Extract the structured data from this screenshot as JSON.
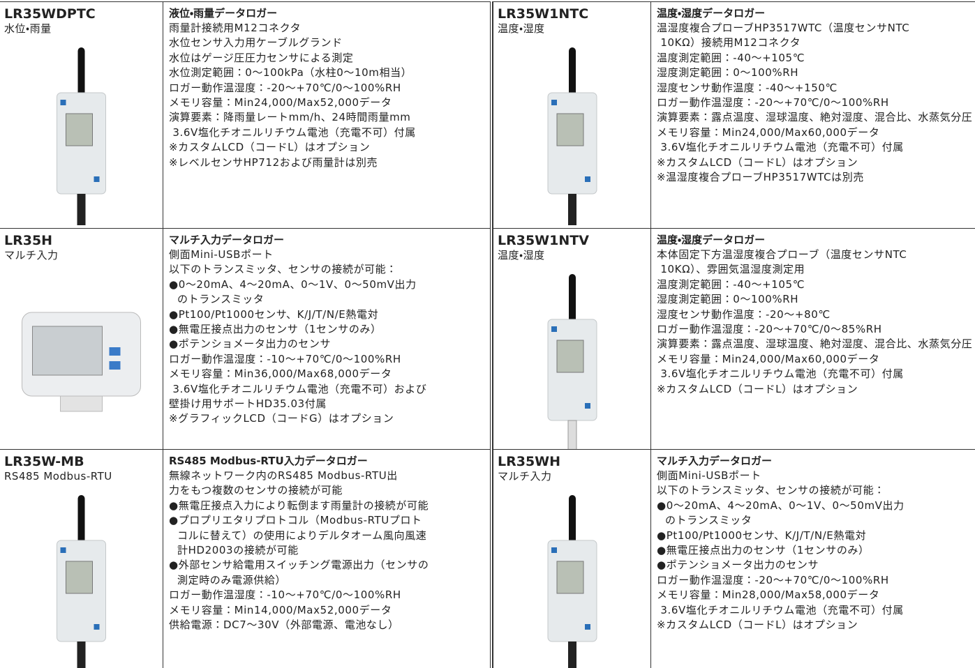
{
  "tables": [
    {
      "rows": [
        {
          "model": "LR35WDPTC",
          "category": "水位・雨量",
          "title": "液位・雨量データロガー",
          "lines": [
            "雨量計接続用M12コネクタ",
            "水位センサ入力用ケーブルグランド",
            "水位はゲージ圧圧力センサによる測定",
            "水位測定範囲：0～100kPa（水柱0～10m相当）",
            "ロガー動作温湿度：-20～+70℃/0～100%RH",
            "メモリ容量：Min24,000/Max52,000データ",
            "演算要素：降雨量レートmm/h、24時間雨量mm",
            " 3.6V塩化チオニルリチウム電池（充電不可）付属",
            "※カスタムLCD（コードL）はオプション",
            "※レベルセンサHP712および雨量計は別売"
          ]
        },
        {
          "model": "LR35H",
          "category": "マルチ入力",
          "title": "マルチ入力データロガー",
          "lines": [
            "側面Mini-USBポート",
            "以下のトランスミッタ、センサの接続が可能：",
            [
              "●0～20mA、4～20mA、0～1V、0～50mV出力",
              "のトランスミッタ"
            ],
            "●Pt100/Pt1000センサ、K/J/T/N/E熱電対",
            "●無電圧接点出力のセンサ（1センサのみ）",
            "●ポテンショメータ出力のセンサ",
            "ロガー動作温湿度：-10～+70℃/0～100%RH",
            "メモリ容量：Min36,000/Max68,000データ",
            " 3.6V塩化チオニルリチウム電池（充電不可）および",
            "壁掛け用サポートHD35.03付属",
            "※グラフィックLCD（コードG）はオプション"
          ]
        },
        {
          "model": "LR35W-MB",
          "category": "RS485 Modbus-RTU",
          "title": "RS485 Modbus-RTU入力データロガー",
          "lines": [
            "無線ネットワーク内のRS485 Modbus-RTU出",
            "力をもつ複数のセンサの接続が可能",
            "●無電圧接点入力により転倒ます雨量計の接続が可能",
            [
              "●プロプリエタリプロトコル（Modbus-RTUプロト",
              "コルに替えて）の使用によりデルタオーム風向風速",
              "計HD2003の接続が可能"
            ],
            [
              "●外部センサ給電用スイッチング電源出力（センサの",
              "測定時のみ電源供給）"
            ],
            "ロガー動作温湿度：-10～+70℃/0～100%RH",
            "メモリ容量：Min14,000/Max52,000データ",
            "供給電源：DC7～30V（外部電源、電池なし）"
          ]
        }
      ]
    },
    {
      "rows": [
        {
          "model": "LR35W1NTC",
          "category": "温度・湿度",
          "title": "温度・湿度データロガー",
          "lines": [
            "温湿度複合プローブHP3517WTC（温度センサNTC",
            " 10KΩ）接続用M12コネクタ",
            "温度測定範囲：-40～+105℃",
            "湿度測定範囲：0～100%RH",
            "湿度センサ動作温度：-40～+150℃",
            "ロガー動作温湿度：-20～+70℃/0～100%RH",
            "演算要素：露点温度、湿球温度、絶対湿度、混合比、水蒸気分圧",
            "メモリ容量：Min24,000/Max60,000データ",
            " 3.6V塩化チオニルリチウム電池（充電不可）付属",
            "※カスタムLCD（コードL）はオプション",
            "※温湿度複合プローブHP3517WTCは別売"
          ]
        },
        {
          "model": "LR35W1NTV",
          "category": "温度・湿度",
          "title": "温度・湿度データロガー",
          "lines": [
            "本体固定下方温湿度複合プローブ（温度センサNTC",
            " 10KΩ）、雰囲気温湿度測定用",
            "温度測定範囲：-40～+105℃",
            "湿度測定範囲：0～100%RH",
            "湿度センサ動作温度：-20～+80℃",
            "ロガー動作温湿度：-20～+70℃/0～85%RH",
            "演算要素：露点温度、湿球温度、絶対湿度、混合比、水蒸気分圧",
            "メモリ容量：Min24,000/Max60,000データ",
            " 3.6V塩化チオニルリチウム電池（充電不可）付属",
            "※カスタムLCD（コードL）はオプション"
          ]
        },
        {
          "model": "LR35WH",
          "category": "マルチ入力",
          "title": "マルチ入力データロガー",
          "lines": [
            "側面Mini-USBポート",
            "以下のトランスミッタ、センサの接続が可能：",
            [
              "●0～20mA、4～20mA、0～1V、0～50mV出力",
              "のトランスミッタ"
            ],
            "●Pt100/Pt1000センサ、K/J/T/N/E熱電対",
            "●無電圧接点出力のセンサ（1センサのみ）",
            "●ポテンショメータ出力のセンサ",
            "ロガー動作温湿度：-20～+70℃/0～100%RH",
            "メモリ容量：Min28,000/Max58,000データ",
            " 3.6V塩化チオニルリチウム電池（充電不可）付属",
            "※カスタムLCD（コードL）はオプション"
          ]
        }
      ]
    }
  ]
}
